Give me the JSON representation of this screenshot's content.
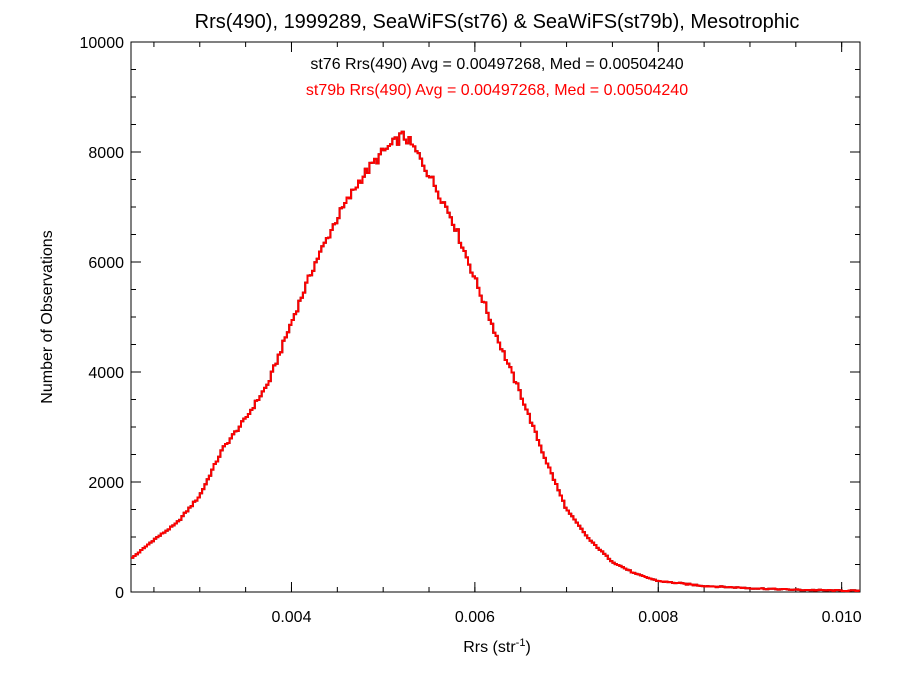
{
  "chart_data": {
    "type": "histogram",
    "title": "Rrs(490), 1999289, SeaWiFS(st76) & SeaWiFS(st79b), Mesotrophic",
    "xlabel": "Rrs (str",
    "xlabel_sup": "-1",
    "xlabel_suffix": ")",
    "ylabel": "Number of Observations",
    "xlim": [
      0.00225,
      0.0102
    ],
    "ylim": [
      0,
      10000
    ],
    "xticks": [
      0.004,
      0.006,
      0.008,
      0.01
    ],
    "xtick_labels": [
      "0.004",
      "0.006",
      "0.008",
      "0.010"
    ],
    "yticks": [
      0,
      2000,
      4000,
      6000,
      8000,
      10000
    ],
    "ytick_labels": [
      "0",
      "2000",
      "4000",
      "6000",
      "8000",
      "10000"
    ],
    "annotations": [
      {
        "text": "st76 Rrs(490) Avg = 0.00497268, Med = 0.00504240",
        "color": "#000000"
      },
      {
        "text": "st79b Rrs(490) Avg = 0.00497268, Med = 0.00504240",
        "color": "#ff0000"
      }
    ],
    "series": [
      {
        "name": "st76",
        "color": "#000000",
        "x": [
          0.00225,
          0.0025,
          0.00275,
          0.003,
          0.00325,
          0.0035,
          0.00375,
          0.004,
          0.00425,
          0.0045,
          0.00475,
          0.005,
          0.00515,
          0.0052,
          0.00525,
          0.0053,
          0.0054,
          0.0055,
          0.00575,
          0.006,
          0.00625,
          0.0065,
          0.00675,
          0.007,
          0.00725,
          0.0075,
          0.00775,
          0.008,
          0.0085,
          0.009,
          0.0095,
          0.0102
        ],
        "y": [
          600,
          950,
          1250,
          1750,
          2600,
          3150,
          3800,
          4900,
          5950,
          6800,
          7500,
          8000,
          8200,
          8300,
          8250,
          8150,
          7900,
          7600,
          6800,
          5700,
          4600,
          3600,
          2500,
          1500,
          950,
          550,
          330,
          200,
          110,
          70,
          40,
          20
        ]
      },
      {
        "name": "st79b",
        "color": "#ff0000",
        "x": [
          0.00225,
          0.0025,
          0.00275,
          0.003,
          0.00325,
          0.0035,
          0.00375,
          0.004,
          0.00425,
          0.0045,
          0.00475,
          0.005,
          0.00515,
          0.0052,
          0.00525,
          0.0053,
          0.0054,
          0.0055,
          0.00575,
          0.006,
          0.00625,
          0.0065,
          0.00675,
          0.007,
          0.00725,
          0.0075,
          0.00775,
          0.008,
          0.0085,
          0.009,
          0.0095,
          0.0102
        ],
        "y": [
          600,
          950,
          1250,
          1750,
          2600,
          3150,
          3800,
          4900,
          5950,
          6800,
          7500,
          8000,
          8200,
          8300,
          8250,
          8150,
          7900,
          7600,
          6800,
          5700,
          4600,
          3600,
          2500,
          1500,
          950,
          550,
          330,
          200,
          110,
          70,
          40,
          20
        ]
      }
    ]
  }
}
